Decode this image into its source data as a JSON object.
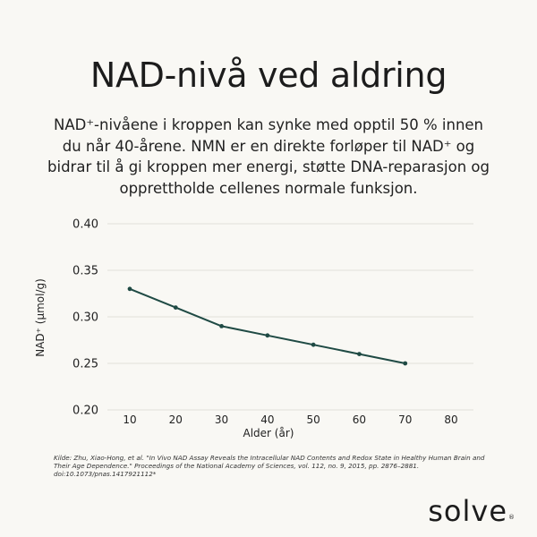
{
  "header": {
    "title": "NAD-nivå ved aldring",
    "intro": "NAD⁺-nivåene i kroppen kan synke med opptil 50 % innen du når 40-årene. NMN er en direkte forløper til NAD⁺ og bidrar til å gi kroppen mer energi, støtte DNA-reparasjon og opprettholde cellenes normale funksjon."
  },
  "chart_data": {
    "type": "line",
    "title": "NAD-nivå ved aldring",
    "xlabel": "Alder (år)",
    "ylabel": "NAD⁺ (µmol/g)",
    "x_ticks": [
      "10",
      "20",
      "30",
      "40",
      "50",
      "60",
      "70",
      "80"
    ],
    "y_ticks": [
      "0.20",
      "0.25",
      "0.30",
      "0.35",
      "0.40"
    ],
    "ylim": [
      0.2,
      0.4
    ],
    "xlim": [
      10,
      80
    ],
    "grid": "horizontal",
    "legend": "none",
    "series": [
      {
        "name": "NAD⁺",
        "color": "#1f4a44",
        "x": [
          10,
          20,
          30,
          40,
          50,
          60,
          70
        ],
        "values": [
          0.33,
          0.31,
          0.29,
          0.28,
          0.27,
          0.26,
          0.25
        ]
      }
    ]
  },
  "footer": {
    "source": "Kilde: Zhu, Xiao-Hong, et al. \"In Vivo NAD Assay Reveals the Intracellular NAD Contents and Redox State in Healthy Human Brain and Their Age Dependence.\" Proceedings of the National Academy of Sciences, vol. 112, no. 9, 2015, pp. 2876–2881. doi:10.1073/pnas.1417921112*",
    "brand": "solve",
    "brand_mark": "®"
  },
  "colors": {
    "background": "#f9f8f4",
    "line": "#1f4a44",
    "grid": "#e6e4df",
    "text": "#1c1c1c"
  }
}
